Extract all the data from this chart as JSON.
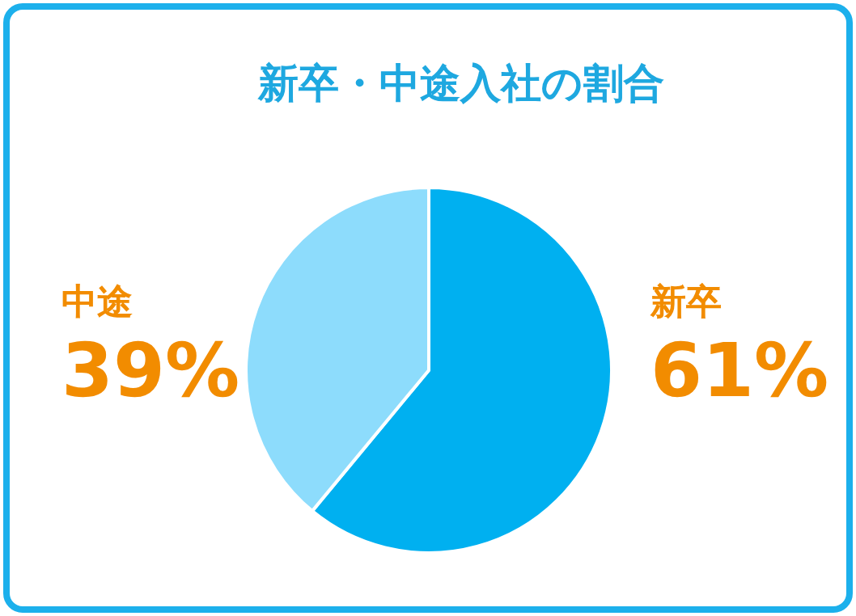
{
  "chart_data": {
    "type": "pie",
    "title": "新卒・中途入社の割合",
    "categories": [
      "新卒",
      "中途"
    ],
    "values": [
      61,
      39
    ],
    "colors": [
      "#00b0f0",
      "#8ddcfc"
    ],
    "value_labels": [
      "61%",
      "39%"
    ]
  }
}
